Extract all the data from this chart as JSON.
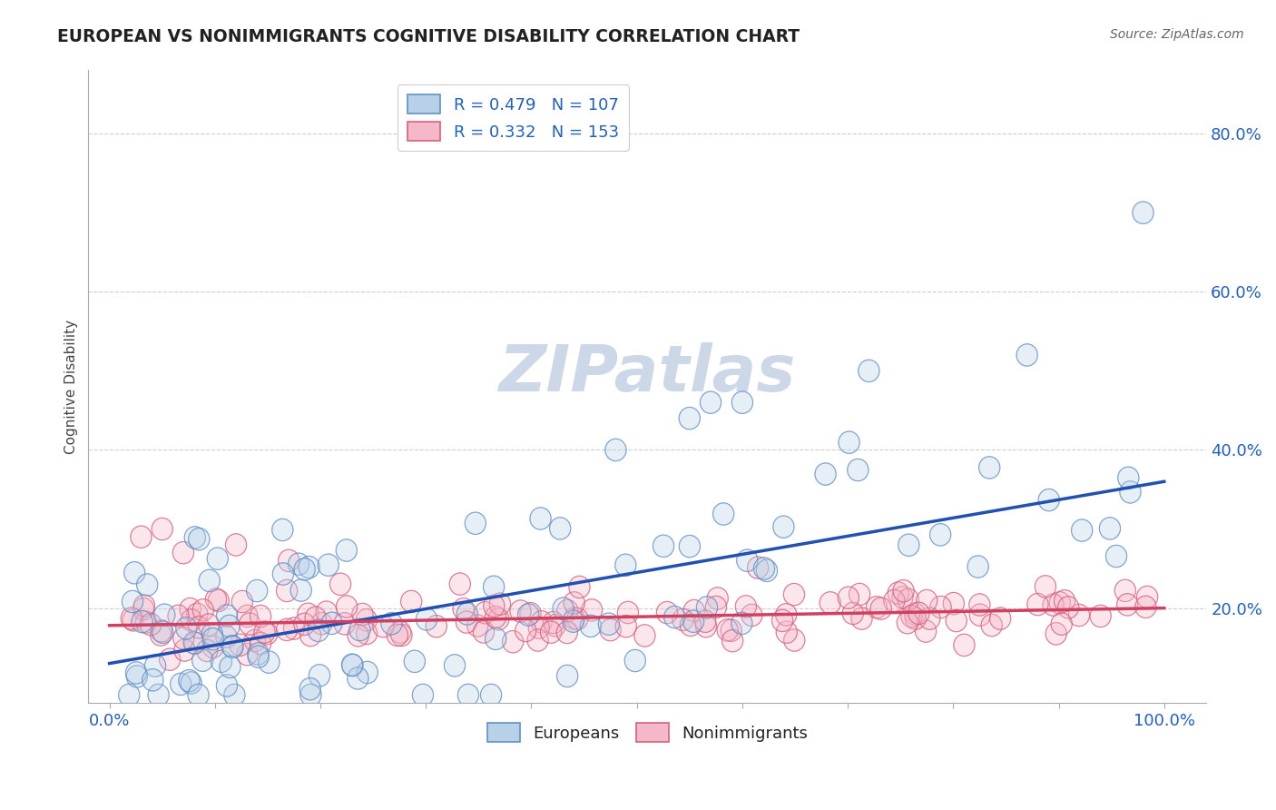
{
  "title": "EUROPEAN VS NONIMMIGRANTS COGNITIVE DISABILITY CORRELATION CHART",
  "source": "Source: ZipAtlas.com",
  "ylabel": "Cognitive Disability",
  "xlim": [
    -0.02,
    1.04
  ],
  "ylim": [
    0.08,
    0.88
  ],
  "xticks": [
    0.0,
    0.1,
    0.2,
    0.3,
    0.4,
    0.5,
    0.6,
    0.7,
    0.8,
    0.9,
    1.0
  ],
  "yticks": [
    0.2,
    0.4,
    0.6,
    0.8
  ],
  "ytick_labels": [
    "20.0%",
    "40.0%",
    "60.0%",
    "80.0%"
  ],
  "xtick_labels": [
    "0.0%",
    "",
    "",
    "",
    "",
    "",
    "",
    "",
    "",
    "",
    "100.0%"
  ],
  "europeans_R": 0.479,
  "europeans_N": 107,
  "nonimmigrants_R": 0.332,
  "nonimmigrants_N": 153,
  "european_fill_color": "#b8d0e8",
  "european_edge_color": "#6090c8",
  "nonimmigrant_fill_color": "#f4b8c8",
  "nonimmigrant_edge_color": "#d86080",
  "european_line_color": "#2050b0",
  "nonimmigrant_line_color": "#d04060",
  "legend_text_color": "#2060c0",
  "title_color": "#222222",
  "background_color": "#ffffff",
  "grid_color": "#c8c8c8",
  "eu_line_y0": 0.13,
  "eu_line_y1": 0.36,
  "ni_line_y0": 0.178,
  "ni_line_y1": 0.2,
  "watermark": "ZIPatlas",
  "watermark_color": "#ccd8e8"
}
